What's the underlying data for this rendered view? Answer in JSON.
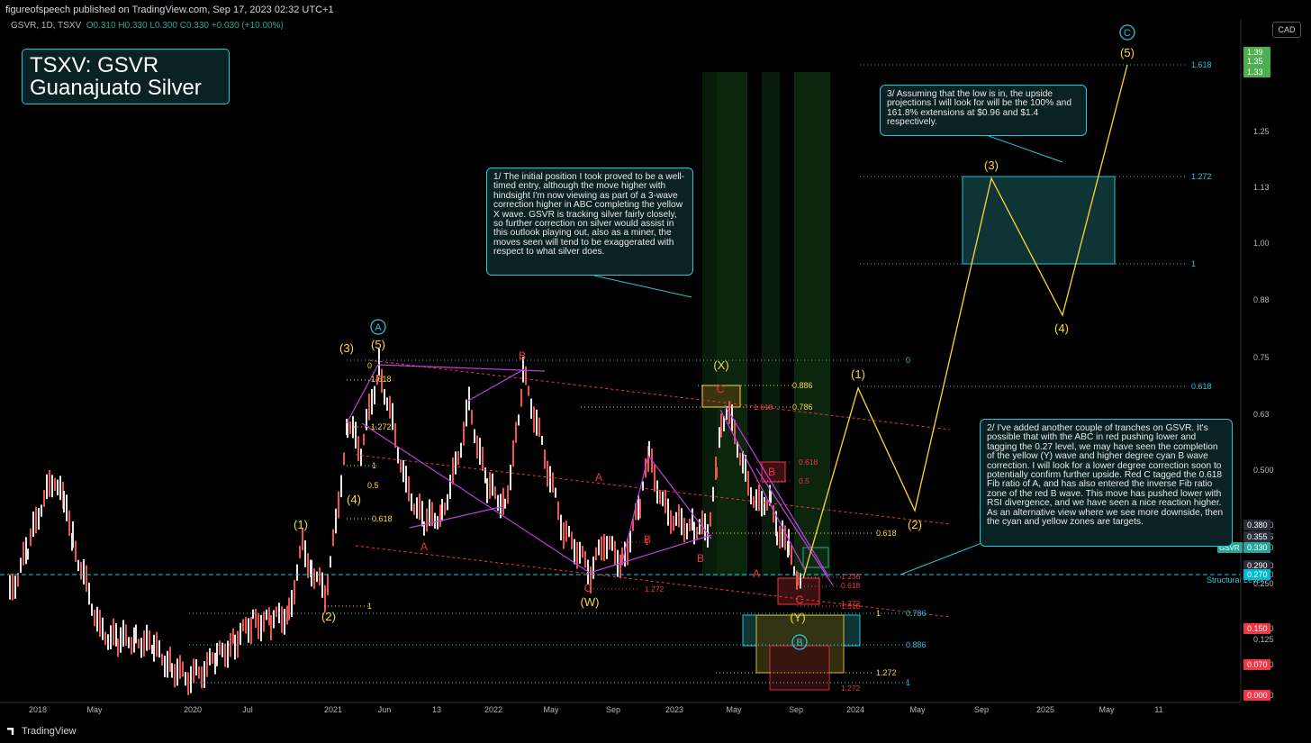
{
  "header": {
    "publisher": "figureofspeech published on TradingView.com, Sep 17, 2023 02:32 UTC+1"
  },
  "symbol_bar": {
    "symbol": "GSVR, 1D, TSXV",
    "o": "O0.310",
    "h": "H0.330",
    "l": "L0.300",
    "c": "C0.330",
    "chg": "+0.030 (+10.00%)"
  },
  "title": {
    "line1": "TSXV: GSVR",
    "line2": "Guanajuato Silver"
  },
  "currency": "CAD",
  "footer": {
    "brand": "TradingView"
  },
  "notes": {
    "n1": "1/ The initial position I took proved to be a well-timed entry, although the move higher with hindsight I'm now viewing as part of a 3-wave correction higher in ABC completing the yellow X wave. GSVR is tracking silver fairly closely, so further correction on silver would assist in this outlook playing out, also as a miner, the moves seen will tend to be exaggerated with respect to what silver does.",
    "n2": "2/ I've added another couple of tranches on GSVR. It's possible that with the ABC in red pushing lower and tagging the 0.27 level, we may have seen the completion of the yellow (Y) wave and higher degree cyan B wave correction. I will look for a lower degree correction soon to potentially confirm further upside. Red C tagged the 0.618 Fib ratio of A, and has also entered the inverse Fib ratio zone of the red B wave. This move has pushed lower with RSI divergence, and we have seen a nice reaction higher. As an alternative view where we see more downside, then the cyan and yellow zones are targets.",
    "n3": "3/ Assuming that the low is in, the upside projections I will look for will be the 100% and 161.8% extensions at $0.96 and $1.4 respectively."
  },
  "chart_data": {
    "type": "line",
    "symbol": "GSVR",
    "x_axis": {
      "ticks": [
        "2018",
        "May",
        "2020",
        "Jul",
        "2021",
        "Jun",
        "13",
        "2022",
        "May",
        "Sep",
        "2023",
        "May",
        "Sep",
        "2024",
        "May",
        "Sep",
        "2025",
        "May",
        "11"
      ]
    },
    "y_axis": {
      "scale": "log",
      "range": [
        0.0,
        1.45
      ],
      "ticks": [
        "1.39",
        "1.35",
        "1.33",
        "1.25",
        "1.13",
        "1.00",
        "0.88",
        "0.75",
        "0.63",
        "0.500",
        "0.380",
        "0.355",
        "0.330",
        "0.290",
        "0.270",
        "0.250",
        "0.150",
        "0.125",
        "0.070",
        "0.000"
      ]
    },
    "price_labels": [
      {
        "label": "0.380",
        "color": "#2a2e39"
      },
      {
        "label": "0.355",
        "color": "#2a2e39"
      },
      {
        "label": "0.330",
        "color": "#26a69a",
        "tag": "GSVR"
      },
      {
        "label": "0.290",
        "color": "#2a2e39"
      },
      {
        "label": "0.270",
        "color": "#00bcd4"
      },
      {
        "label": "0.150",
        "color": "#f23645"
      },
      {
        "label": "0.070",
        "color": "#f23645"
      },
      {
        "label": "0.000",
        "color": "#f23645"
      },
      {
        "label": "1.39",
        "color": "#4caf50"
      },
      {
        "label": "1.35",
        "color": "#4caf50"
      },
      {
        "label": "1.33",
        "color": "#4caf50"
      }
    ],
    "structural_level": {
      "value": 0.27,
      "label": "Structural Level"
    },
    "projection_path": {
      "labels": [
        "(1)",
        "(2)",
        "(3)",
        "(4)",
        "(5)"
      ],
      "values": [
        0.68,
        0.39,
        1.15,
        0.84,
        1.45
      ]
    },
    "wave_labels": {
      "yellow": [
        "(1)",
        "(2)",
        "(3)",
        "(4)",
        "(5)",
        "(W)",
        "(X)",
        "(Y)"
      ],
      "red": [
        "A",
        "B",
        "C",
        "A",
        "B",
        "C",
        "A",
        "B",
        "C",
        "B"
      ],
      "cyan": [
        "A",
        "B",
        "C"
      ]
    },
    "fib_labels": {
      "cyan_right": [
        "1.618",
        "1.272",
        "1",
        "0.618",
        "0",
        "0.786",
        "0.886",
        "1"
      ],
      "yellow": [
        "0.886",
        "0.786",
        "0.618",
        "1",
        "1.272",
        "0",
        "1.618",
        "1.272",
        "1",
        "0.5",
        "0.618",
        "1"
      ],
      "red": [
        "0.618",
        "0.5",
        "1.618",
        "1.272",
        "1",
        "1.272",
        "1.236",
        "0.618",
        "1.618",
        "1.272"
      ]
    }
  }
}
